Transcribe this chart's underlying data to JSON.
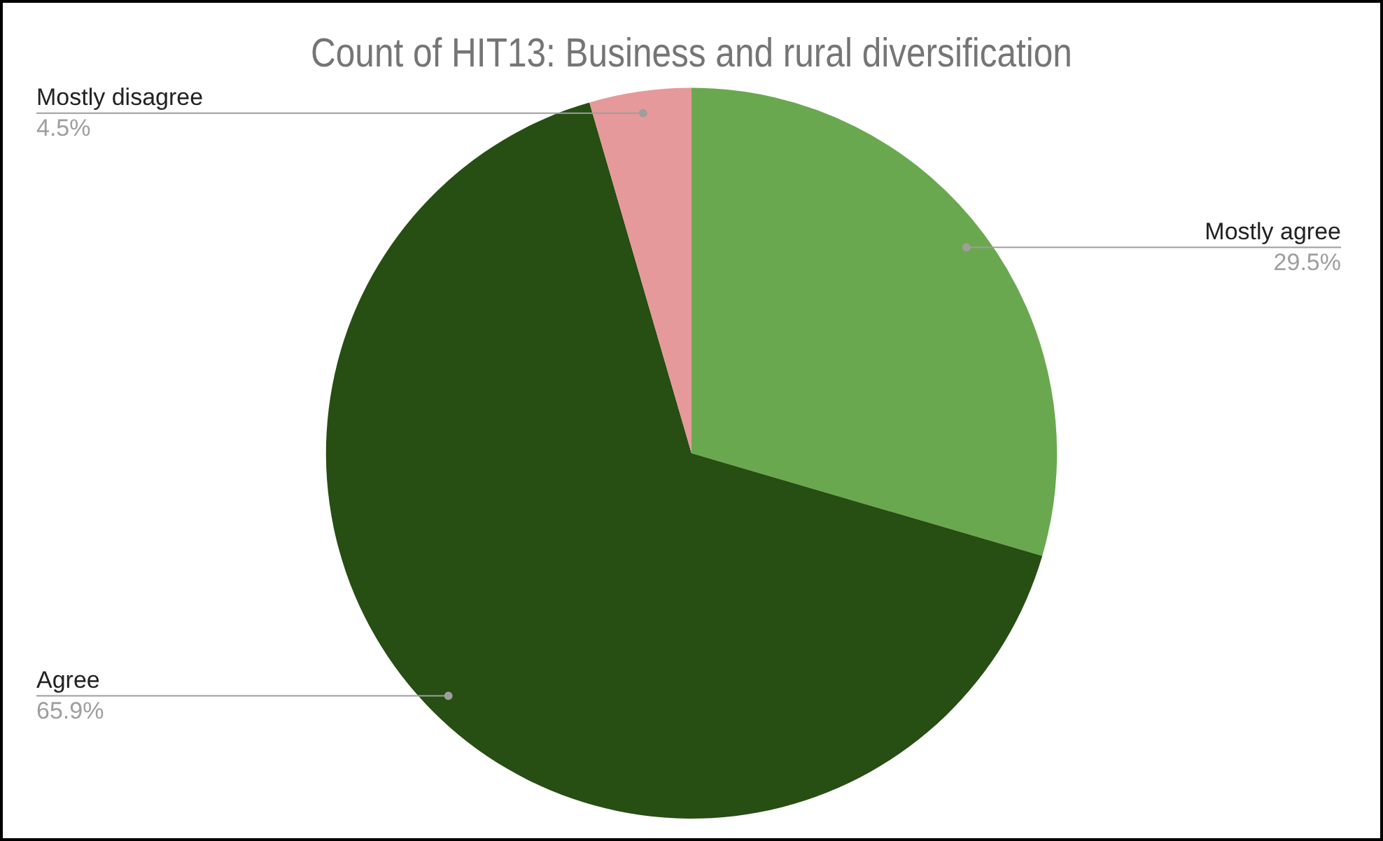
{
  "chart_data": {
    "type": "pie",
    "title": "Count of HIT13: Business and rural diversification",
    "categories": [
      "Mostly agree",
      "Agree",
      "Mostly disagree"
    ],
    "values": [
      29.5,
      65.9,
      4.5
    ],
    "value_labels": [
      "29.5%",
      "65.9%",
      "4.5%"
    ],
    "colors": [
      "#6aa84f",
      "#274e13",
      "#e6999a"
    ],
    "legend": false
  }
}
